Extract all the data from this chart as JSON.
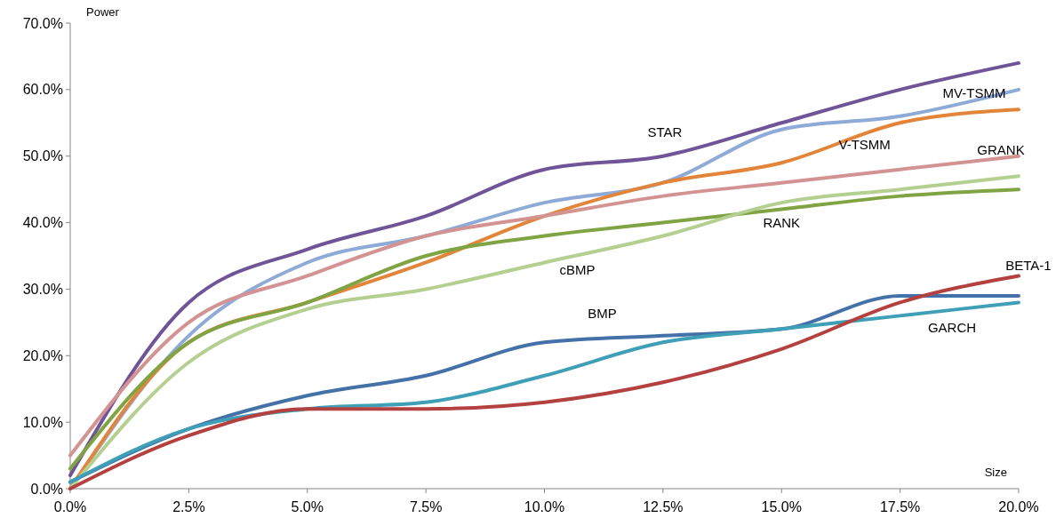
{
  "chart_data": {
    "type": "line",
    "xlabel": "Size",
    "ylabel": "Power",
    "x": [
      0,
      2.5,
      5,
      7.5,
      10,
      12.5,
      15,
      17.5,
      20
    ],
    "xlim": [
      0,
      20
    ],
    "xticks": [
      {
        "value": 0,
        "label": "0.0%"
      },
      {
        "value": 2.5,
        "label": "2.5%"
      },
      {
        "value": 5,
        "label": "5.0%"
      },
      {
        "value": 7.5,
        "label": "7.5%"
      },
      {
        "value": 10,
        "label": "10.0%"
      },
      {
        "value": 12.5,
        "label": "12.5%"
      },
      {
        "value": 15,
        "label": "15.0%"
      },
      {
        "value": 17.5,
        "label": "17.5%"
      },
      {
        "value": 20,
        "label": "20.0%"
      }
    ],
    "ylim": [
      0,
      70
    ],
    "yticks": [
      {
        "value": 0,
        "label": "0.0%"
      },
      {
        "value": 10,
        "label": "10.0%"
      },
      {
        "value": 20,
        "label": "20.0%"
      },
      {
        "value": 30,
        "label": "30.0%"
      },
      {
        "value": 40,
        "label": "40.0%"
      },
      {
        "value": 50,
        "label": "50.0%"
      },
      {
        "value": 60,
        "label": "60.0%"
      },
      {
        "value": 70,
        "label": "70.0%"
      }
    ],
    "grid": false,
    "marker": "none",
    "line_style": "solid",
    "series": [
      {
        "name": "STAR",
        "color": "#6f5597",
        "values": [
          2,
          28,
          36,
          41,
          48,
          50,
          55,
          60,
          64
        ]
      },
      {
        "name": "MV-TSMM",
        "color": "#8eaad6",
        "values": [
          0,
          23,
          34,
          38,
          43,
          46,
          54,
          56,
          60
        ]
      },
      {
        "name": "V-TSMM",
        "color": "#e2853a",
        "values": [
          0,
          22,
          28,
          34,
          41,
          46,
          49,
          55,
          57
        ]
      },
      {
        "name": "GRANK",
        "color": "#d49393",
        "values": [
          5,
          25,
          32,
          38,
          41,
          44,
          46,
          48,
          50
        ]
      },
      {
        "name": "RANK",
        "color": "#80a443",
        "values": [
          3,
          22,
          28,
          35,
          38,
          40,
          42,
          44,
          45
        ]
      },
      {
        "name": "cBMP",
        "color": "#b4cf90",
        "values": [
          0,
          19,
          27,
          30,
          34,
          38,
          43,
          45,
          47
        ]
      },
      {
        "name": "BMP",
        "color": "#4471a8",
        "values": [
          1,
          9,
          14,
          17,
          22,
          23,
          24,
          29,
          29
        ]
      },
      {
        "name": "GARCH",
        "color": "#3e9fb6",
        "values": [
          1,
          9,
          12,
          13,
          17,
          22,
          24,
          26,
          28
        ]
      },
      {
        "name": "BETA-1",
        "color": "#b3413f",
        "values": [
          0,
          8,
          12,
          12,
          13,
          16,
          21,
          28,
          32
        ]
      }
    ]
  }
}
